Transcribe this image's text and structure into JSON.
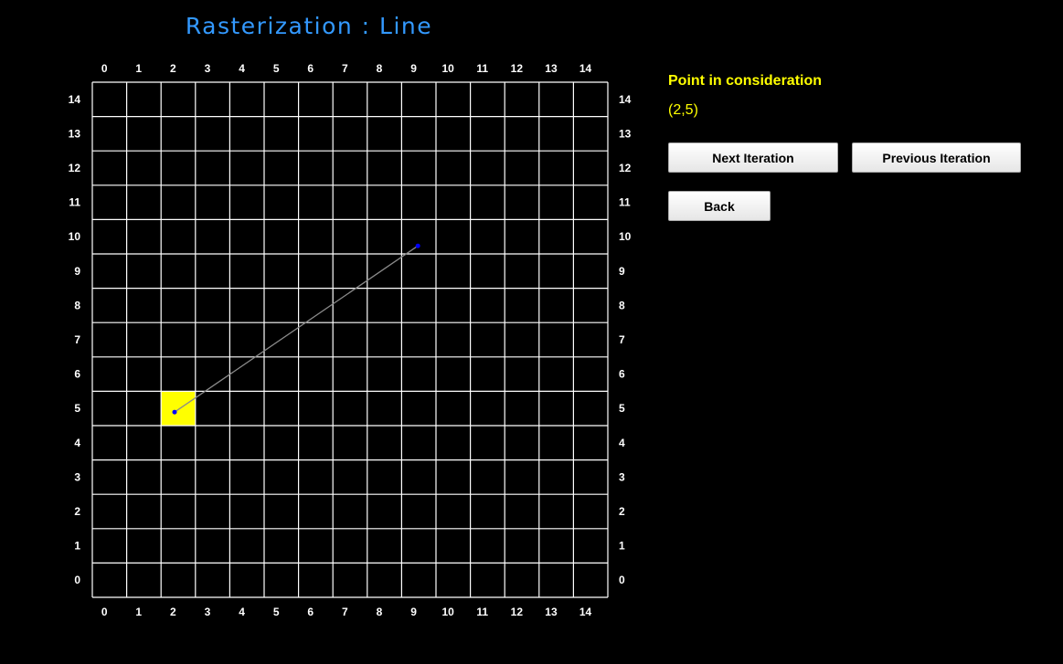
{
  "title": "Rasterization : Line",
  "grid": {
    "min": 0,
    "max": 14,
    "ticks": [
      "0",
      "1",
      "2",
      "3",
      "4",
      "5",
      "6",
      "7",
      "8",
      "9",
      "10",
      "11",
      "12",
      "13",
      "14"
    ],
    "line_color": "#ffffff",
    "background": "#000000"
  },
  "line": {
    "start": [
      2.5,
      5.5
    ],
    "end": [
      9.5,
      10.5
    ],
    "color": "#8a8a8a",
    "endpoint_color": "#0000ff"
  },
  "highlighted_cell": {
    "x": 2,
    "y": 5,
    "color": "#ffff00"
  },
  "info": {
    "label": "Point in consideration",
    "value": "(2,5)",
    "color": "#ffff00"
  },
  "buttons": {
    "next": "Next Iteration",
    "previous": "Previous Iteration",
    "back": "Back"
  },
  "colors": {
    "title": "#3399ff"
  }
}
